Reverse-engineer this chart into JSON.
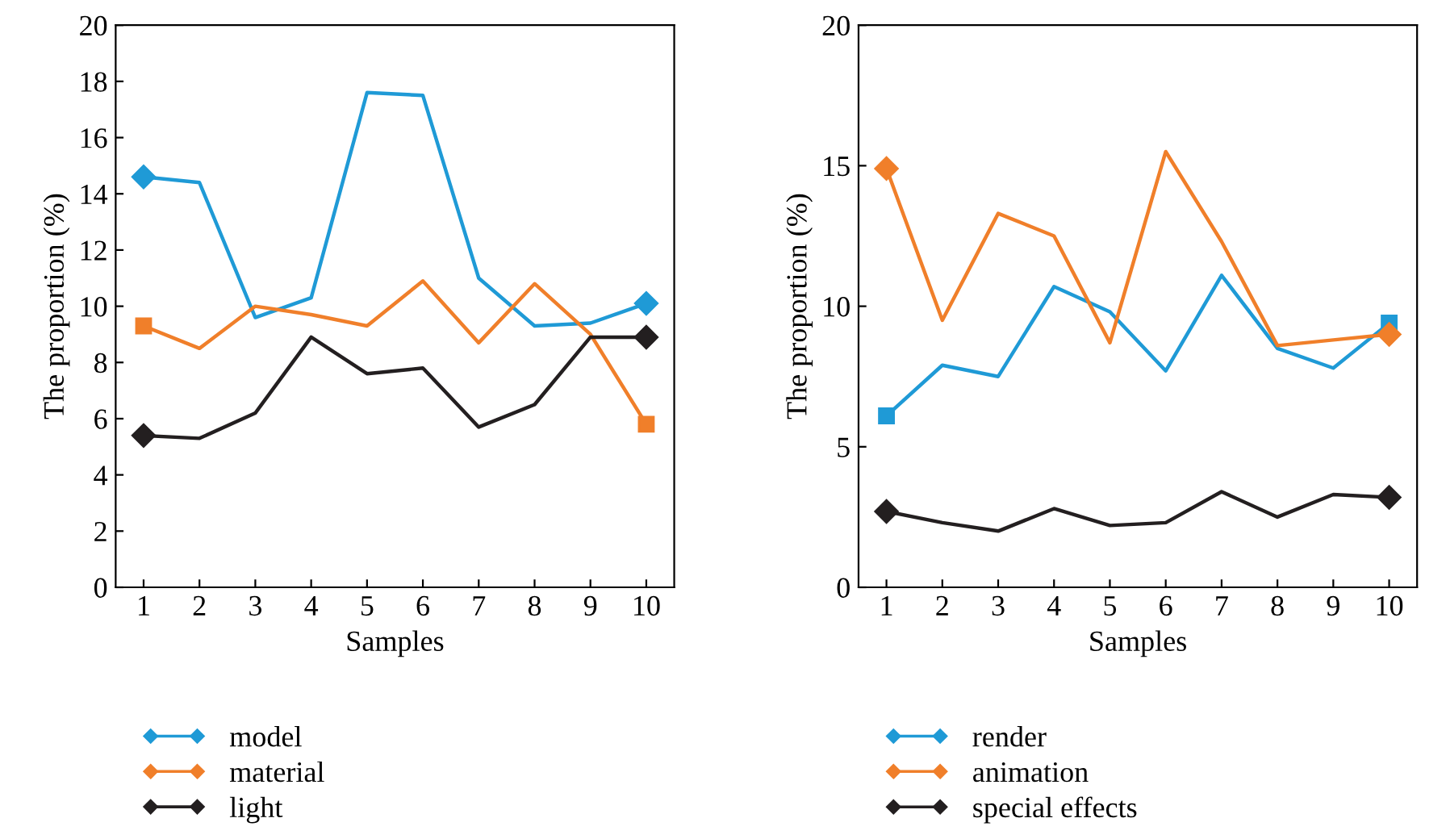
{
  "chart_data": [
    {
      "type": "line",
      "xlabel": "Samples",
      "ylabel": "The proportion (%)",
      "categories": [
        "1",
        "2",
        "3",
        "4",
        "5",
        "6",
        "7",
        "8",
        "9",
        "10"
      ],
      "ylim": [
        0,
        20
      ],
      "yticks": [
        0,
        2,
        4,
        6,
        8,
        10,
        12,
        14,
        16,
        18,
        20
      ],
      "grid": false,
      "legend": "bottom",
      "series": [
        {
          "name": "model",
          "color": "#1f9ad6",
          "values": [
            14.6,
            14.4,
            9.6,
            10.3,
            17.6,
            17.5,
            11.0,
            9.3,
            9.4,
            10.1
          ]
        },
        {
          "name": "material",
          "color": "#f07f2a",
          "values": [
            9.3,
            8.5,
            10.0,
            9.7,
            9.3,
            10.9,
            8.7,
            10.8,
            9.0,
            5.8
          ]
        },
        {
          "name": "light",
          "color": "#231f20",
          "values": [
            5.4,
            5.3,
            6.2,
            8.9,
            7.6,
            7.8,
            5.7,
            6.5,
            8.9,
            8.9
          ]
        }
      ]
    },
    {
      "type": "line",
      "xlabel": "Samples",
      "ylabel": "The proportion (%)",
      "categories": [
        "1",
        "2",
        "3",
        "4",
        "5",
        "6",
        "7",
        "8",
        "9",
        "10"
      ],
      "ylim": [
        0,
        20
      ],
      "yticks": [
        0,
        5,
        10,
        15,
        20
      ],
      "grid": false,
      "legend": "bottom",
      "series": [
        {
          "name": "render",
          "color": "#1f9ad6",
          "values": [
            6.1,
            7.9,
            7.5,
            10.7,
            9.8,
            7.7,
            11.1,
            8.5,
            7.8,
            9.4
          ]
        },
        {
          "name": "animation",
          "color": "#f07f2a",
          "values": [
            14.9,
            9.5,
            13.3,
            12.5,
            8.7,
            15.5,
            12.3,
            8.6,
            8.8,
            9.0
          ]
        },
        {
          "name": "special effects",
          "color": "#231f20",
          "values": [
            2.7,
            2.3,
            2.0,
            2.8,
            2.2,
            2.3,
            3.4,
            2.5,
            3.3,
            3.2
          ]
        }
      ]
    }
  ]
}
